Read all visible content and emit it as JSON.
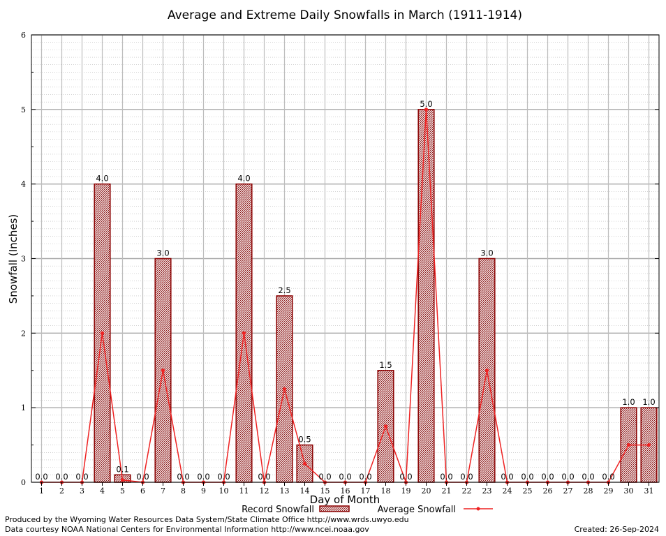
{
  "chart_data": {
    "type": "bar",
    "title": "Average and Extreme Daily Snowfalls in March (1911-1914)",
    "xlabel": "Day of Month",
    "ylabel": "Snowfall (Inches)",
    "ylim": [
      0,
      6
    ],
    "yticks": [
      0,
      1,
      2,
      3,
      4,
      5,
      6
    ],
    "grid": true,
    "categories": [
      "1",
      "2",
      "3",
      "4",
      "5",
      "6",
      "7",
      "8",
      "9",
      "10",
      "11",
      "12",
      "13",
      "14",
      "15",
      "16",
      "17",
      "18",
      "19",
      "20",
      "21",
      "22",
      "23",
      "24",
      "25",
      "26",
      "27",
      "28",
      "29",
      "30",
      "31"
    ],
    "series": [
      {
        "name": "Record Snowfall",
        "type": "bar",
        "color": "#8b0000",
        "values": [
          0.0,
          0.0,
          0.0,
          4.0,
          0.1,
          0.0,
          3.0,
          0.0,
          0.0,
          0.0,
          4.0,
          0.0,
          2.5,
          0.5,
          0.0,
          0.0,
          0.0,
          1.5,
          0.0,
          5.0,
          0.0,
          0.0,
          3.0,
          0.0,
          0.0,
          0.0,
          0.0,
          0.0,
          0.0,
          1.0,
          1.0
        ],
        "labels": [
          "0.0",
          "0.0",
          "0.0",
          "4.0",
          "0.1",
          "0.0",
          "3.0",
          "0.0",
          "0.0",
          "0.0",
          "4.0",
          "0.0",
          "2.5",
          "0.5",
          "0.0",
          "0.0",
          "0.0",
          "1.5",
          "0.0",
          "5.0",
          "0.0",
          "0.0",
          "3.0",
          "0.0",
          "0.0",
          "0.0",
          "0.0",
          "0.0",
          "0.0",
          "1.0",
          "1.0"
        ]
      },
      {
        "name": "Average Snowfall",
        "type": "line",
        "color": "#ee2222",
        "values": [
          0,
          0,
          0,
          2.0,
          0.03,
          0,
          1.5,
          0,
          0,
          0,
          2.0,
          0,
          1.25,
          0.25,
          0,
          0,
          0,
          0.75,
          0,
          5.0,
          0,
          0,
          1.5,
          0,
          0,
          0,
          0,
          0,
          0,
          0.5,
          0.5
        ]
      }
    ],
    "legend_position": "bottom-center"
  },
  "footer": {
    "line1": "Produced by the Wyoming Water Resources Data System/State Climate Office http://www.wrds.uwyo.edu",
    "line2": "Data courtesy NOAA National Centers for Environmental Information http://www.ncei.noaa.gov",
    "created": "Created:  26-Sep-2024"
  }
}
